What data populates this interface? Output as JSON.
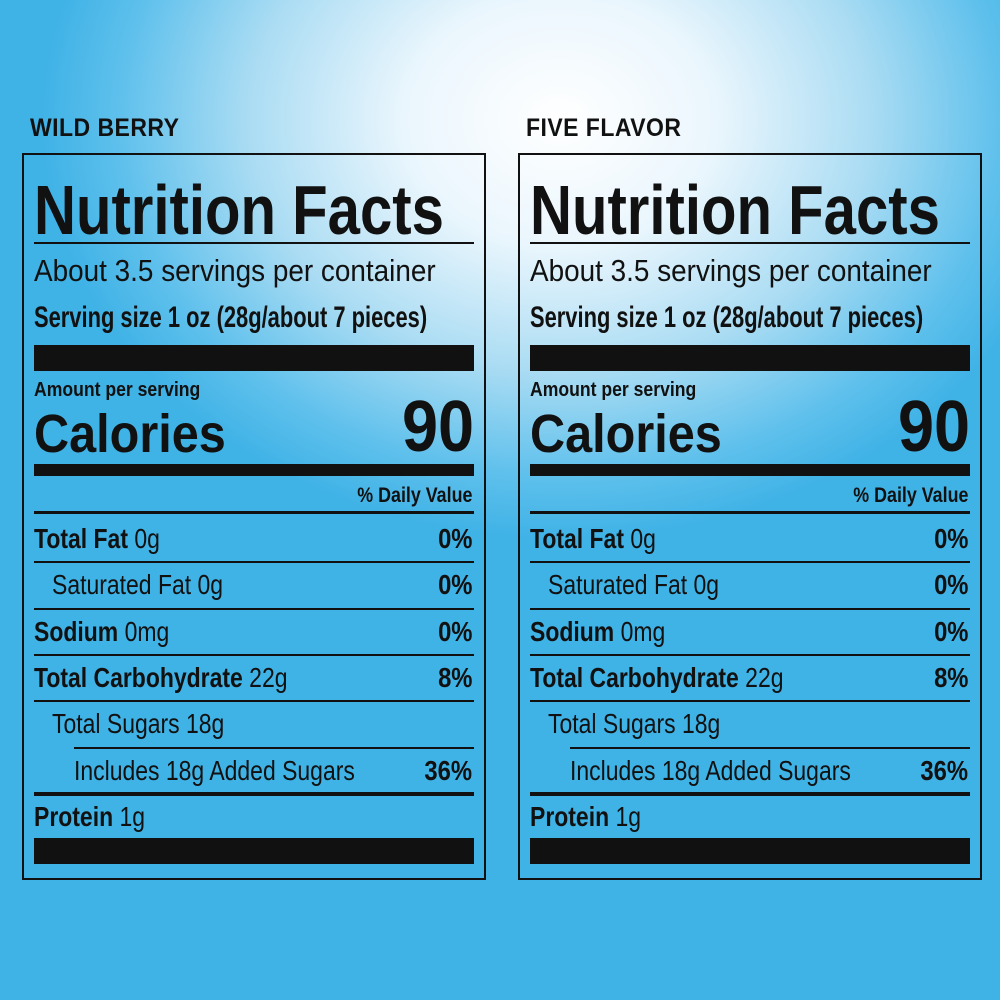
{
  "panels": [
    {
      "flavor": "WILD BERRY",
      "title": "Nutrition Facts",
      "servings": "About 3.5 servings per container",
      "serving_size": "Serving size 1 oz (28g/about 7 pieces)",
      "amount_per_serving": "Amount per serving",
      "calories_label": "Calories",
      "calories_value": "90",
      "dv_header": "% Daily Value",
      "rows": [
        {
          "bold": "Total Fat",
          "amount": "0g",
          "dv": "0%"
        },
        {
          "bold": "",
          "amount": "Saturated Fat 0g",
          "dv": "0%"
        },
        {
          "bold": "Sodium",
          "amount": "0mg",
          "dv": "0%"
        },
        {
          "bold": "Total Carbohydrate",
          "amount": "22g",
          "dv": "8%"
        },
        {
          "bold": "",
          "amount": "Total Sugars 18g",
          "dv": ""
        },
        {
          "bold": "",
          "amount": "Includes 18g Added Sugars",
          "dv": "36%"
        },
        {
          "bold": "Protein",
          "amount": "1g",
          "dv": ""
        }
      ]
    },
    {
      "flavor": "FIVE FLAVOR",
      "title": "Nutrition Facts",
      "servings": "About 3.5 servings per container",
      "serving_size": "Serving size 1 oz (28g/about 7 pieces)",
      "amount_per_serving": "Amount per serving",
      "calories_label": "Calories",
      "calories_value": "90",
      "dv_header": "% Daily Value",
      "rows": [
        {
          "bold": "Total Fat",
          "amount": "0g",
          "dv": "0%"
        },
        {
          "bold": "",
          "amount": "Saturated Fat 0g",
          "dv": "0%"
        },
        {
          "bold": "Sodium",
          "amount": "0mg",
          "dv": "0%"
        },
        {
          "bold": "Total Carbohydrate",
          "amount": "22g",
          "dv": "8%"
        },
        {
          "bold": "",
          "amount": "Total Sugars 18g",
          "dv": ""
        },
        {
          "bold": "",
          "amount": "Includes 18g Added Sugars",
          "dv": "36%"
        },
        {
          "bold": "Protein",
          "amount": "1g",
          "dv": ""
        }
      ]
    }
  ]
}
